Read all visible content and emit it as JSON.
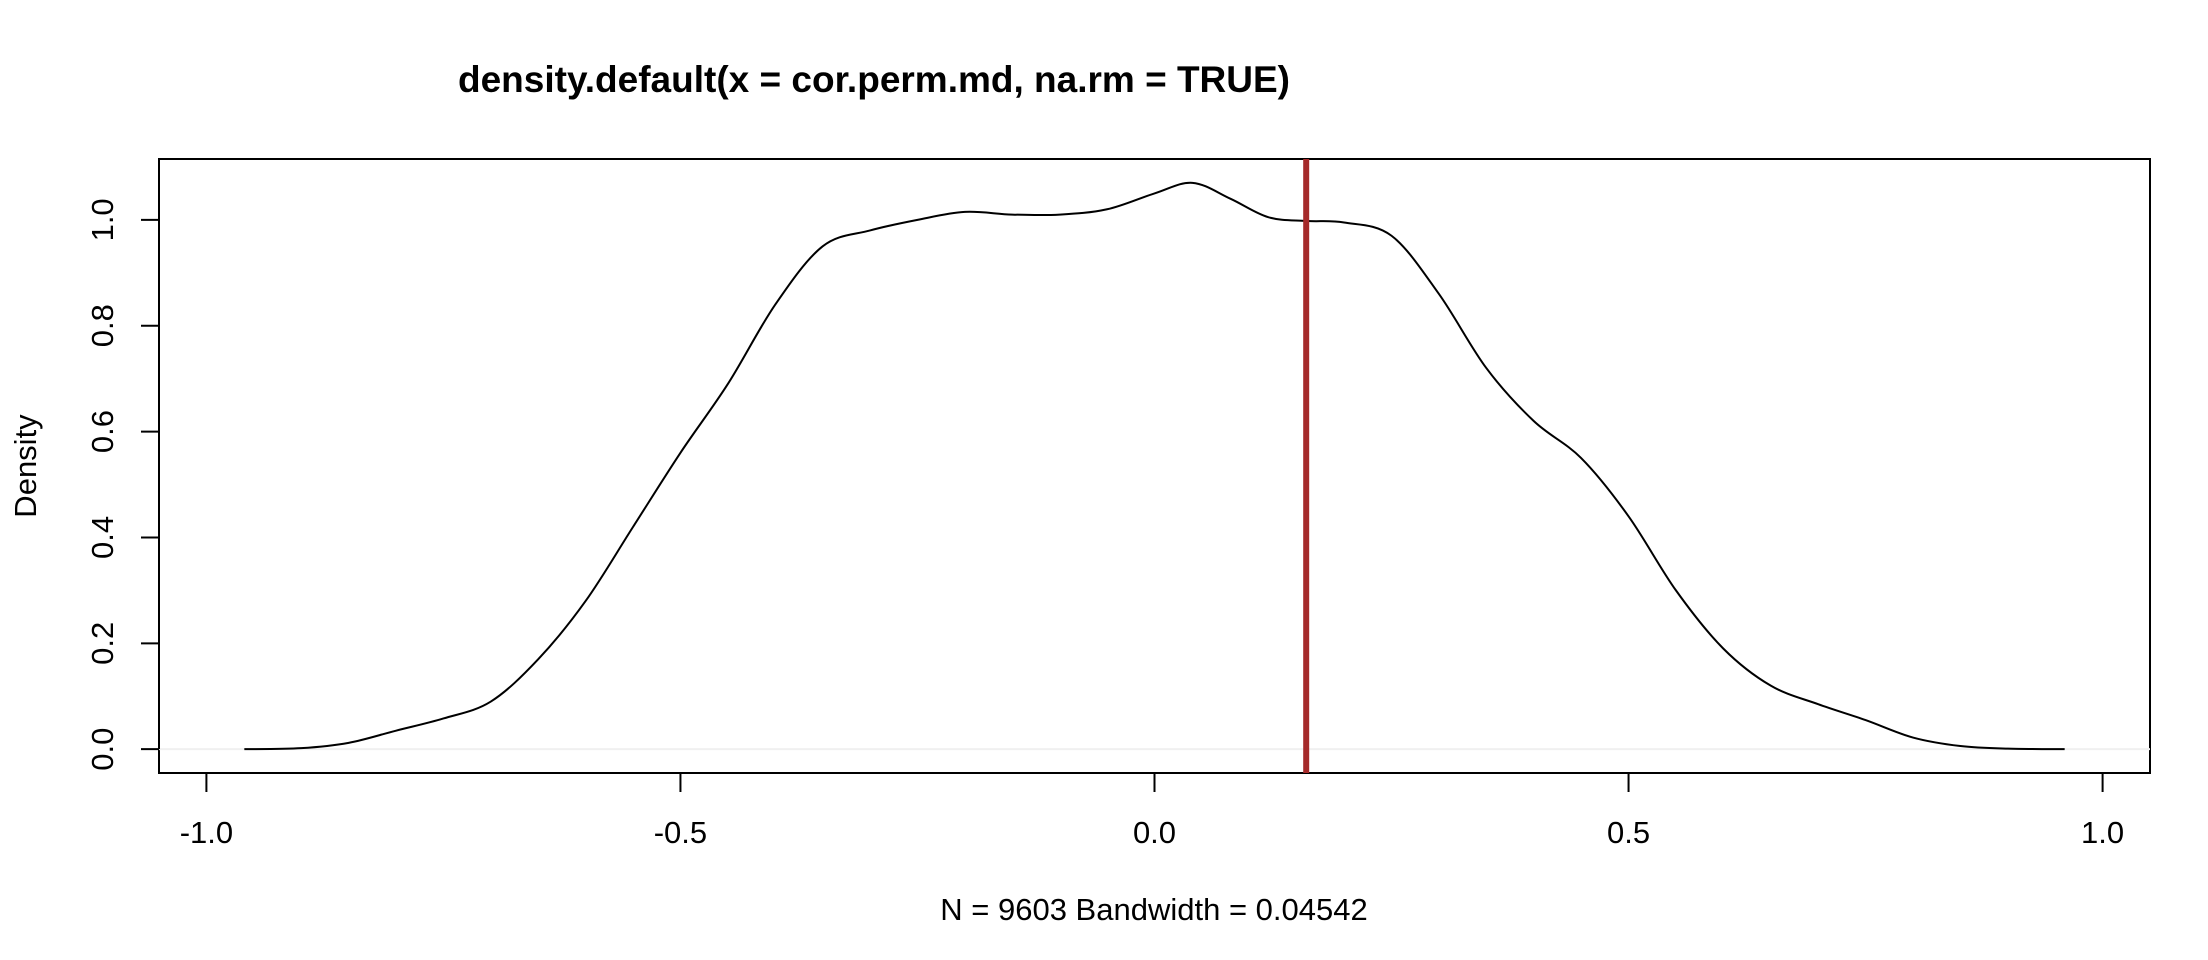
{
  "chart_data": {
    "type": "line",
    "title": "density.default(x = cor.perm.md, na.rm = TRUE)",
    "xlabel": "N = 9603   Bandwidth = 0.04542",
    "ylabel": "Density",
    "xlim": [
      -1.05,
      1.05
    ],
    "ylim": [
      -0.045,
      1.115
    ],
    "x_ticks": [
      -1.0,
      -0.5,
      0.0,
      0.5,
      1.0
    ],
    "x_tick_labels": [
      "-1.0",
      "-0.5",
      "0.0",
      "0.5",
      "1.0"
    ],
    "y_ticks": [
      0.0,
      0.2,
      0.4,
      0.6,
      0.8,
      1.0
    ],
    "y_tick_labels": [
      "0.0",
      "0.2",
      "0.4",
      "0.6",
      "0.8",
      "1.0"
    ],
    "grid": false,
    "series": [
      {
        "color": "#000000",
        "x": [
          -0.96,
          -0.9,
          -0.85,
          -0.8,
          -0.75,
          -0.7,
          -0.65,
          -0.6,
          -0.55,
          -0.5,
          -0.45,
          -0.4,
          -0.35,
          -0.3,
          -0.25,
          -0.2,
          -0.15,
          -0.1,
          -0.05,
          0.0,
          0.04,
          0.08,
          0.12,
          0.16,
          0.2,
          0.25,
          0.3,
          0.35,
          0.4,
          0.45,
          0.5,
          0.55,
          0.6,
          0.65,
          0.7,
          0.75,
          0.8,
          0.85,
          0.9,
          0.96
        ],
        "y": [
          0.0,
          0.002,
          0.012,
          0.035,
          0.058,
          0.09,
          0.17,
          0.28,
          0.42,
          0.56,
          0.69,
          0.84,
          0.95,
          0.98,
          1.0,
          1.015,
          1.01,
          1.01,
          1.02,
          1.05,
          1.07,
          1.04,
          1.005,
          0.998,
          0.995,
          0.97,
          0.86,
          0.72,
          0.62,
          0.55,
          0.44,
          0.3,
          0.19,
          0.12,
          0.085,
          0.055,
          0.022,
          0.006,
          0.001,
          0.0
        ]
      }
    ],
    "vline": {
      "x": 0.16,
      "color": "#a52a2a"
    }
  }
}
